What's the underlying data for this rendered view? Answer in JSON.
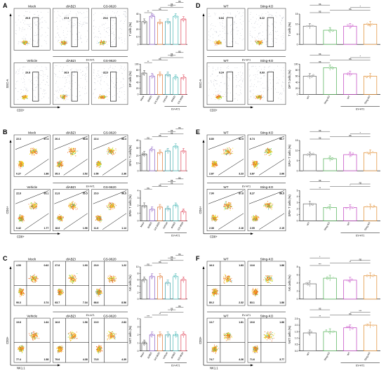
{
  "panels": [
    {
      "letter": "A",
      "group_label": "EV-A71",
      "y_label": "SSC-A",
      "x_label": "CD3+",
      "rows": [
        [
          {
            "title": "Mock",
            "q": [
              "29.5"
            ]
          },
          {
            "title": "diABZI",
            "q": [
              "37.5"
            ]
          },
          {
            "title": "GS-9620",
            "q": [
              "29.6"
            ]
          }
        ],
        [
          {
            "title": "Vehicle",
            "q": [
              "29.8"
            ]
          },
          {
            "title": "diABZI",
            "q": [
              "36.9"
            ]
          },
          {
            "title": "GS-9620",
            "q": [
              "32.8"
            ]
          }
        ]
      ],
      "x_cats": [
        "Mock",
        "diABZI",
        "GS-9620",
        "Vehicle",
        "diABZI",
        "GS-9620"
      ],
      "plot_group_label": "EV-A71",
      "plots": [
        {
          "ylabel": "T cells (%)",
          "ticks": [
            "40",
            "30",
            "20",
            "10",
            "0"
          ],
          "sig": [
            "**",
            "ns",
            "***",
            "ns",
            "ns"
          ]
        },
        {
          "ylabel": "DP cells (%)",
          "ticks": [
            "100",
            "80",
            "60",
            "40",
            "20",
            "0"
          ],
          "sig": [
            "**",
            "ns",
            "***",
            "ns",
            "ns"
          ]
        }
      ]
    },
    {
      "letter": "B",
      "group_label": "EV-A71",
      "y_label": "CD4+",
      "x_label": "CD8+",
      "rows": [
        [
          {
            "title": "Mock",
            "q": [
              "22.3",
              "67.4",
              "0.27",
              "1.88"
            ]
          },
          {
            "title": "diABZI",
            "q": [
              "20.4",
              "58.8",
              "35.3",
              "2.52"
            ]
          },
          {
            "title": "GS-9620",
            "q": [
              "22.4",
              "68.4",
              "3.55",
              "2.36"
            ]
          }
        ],
        [
          {
            "title": "Vehicle",
            "q": [
              "22.8",
              "65.1",
              "0.42",
              "1.77"
            ]
          },
          {
            "title": "diABZI",
            "q": [
              "31.8",
              "55.5",
              "18.6",
              "1.96"
            ]
          },
          {
            "title": "GS-9620",
            "q": [
              "20.9",
              "96.5",
              "11.6",
              "1.14"
            ]
          }
        ]
      ],
      "x_cats": [
        "Mock",
        "diABZI",
        "GS-9620",
        "Vehicle",
        "diABZI",
        "GS-9620"
      ],
      "plot_group_label": "EV-A71",
      "plots": [
        {
          "ylabel": "SP4+ T cells(%)",
          "ticks": [
            "40",
            "30",
            "20",
            "10",
            "0"
          ],
          "sig": [
            "ns",
            "ns",
            "ns",
            "ns",
            "ns"
          ]
        },
        {
          "ylabel": "SP8+ T cells (%)",
          "ticks": [
            "4",
            "3",
            "2",
            "1",
            "0"
          ],
          "sig": [
            "ns",
            "ns",
            "ns",
            "ns",
            "ns"
          ]
        }
      ]
    },
    {
      "letter": "C",
      "group_label": "EV-A71",
      "y_label": "CD3+",
      "x_label": "NK1.1",
      "rows": [
        [
          {
            "title": "Mock",
            "q": [
              "4.55",
              "0.62",
              "90.3",
              "3.74"
            ]
          },
          {
            "title": "diABZI",
            "q": [
              "27.8",
              "1.93",
              "63.7",
              "7.34"
            ]
          },
          {
            "title": "GS-9620",
            "q": [
              "23.9",
              "1.22",
              "66.6",
              "8.56"
            ]
          }
        ],
        [
          {
            "title": "Vehicle",
            "q": [
              "19.8",
              "1.64",
              "77.4",
              "1.58"
            ]
          },
          {
            "title": "diABZI",
            "q": [
              "16.8",
              "1.56",
              "79.6",
              "4.38"
            ]
          },
          {
            "title": "GS-9620",
            "q": [
              "19.9",
              "2.83",
              "73.5",
              "4.39"
            ]
          }
        ]
      ],
      "x_cats": [
        "Mock",
        "diABZI",
        "GS-9620",
        "Vehicle",
        "diABZI",
        "GS-9620"
      ],
      "plot_group_label": "EV-A71",
      "plots": [
        {
          "ylabel": "NK cells (%)",
          "ticks": [
            "10",
            "8",
            "6",
            "4",
            "2",
            "0"
          ],
          "sig": [
            "ns",
            "ns",
            "ns",
            "ns",
            "ns"
          ]
        },
        {
          "ylabel": "NKT cells (%)",
          "ticks": [
            "4",
            "3",
            "2",
            "1",
            "0"
          ],
          "sig": [
            "***",
            "**",
            "*",
            "ns",
            "ns"
          ]
        }
      ]
    },
    {
      "letter": "D",
      "group_label": "EV-A71",
      "y_label": "SSC-A",
      "x_label": "CD3+",
      "rows": [
        [
          {
            "title": "WT",
            "q": [
              "8.84"
            ]
          },
          {
            "title": "Sting-KO",
            "q": [
              "8.22"
            ]
          }
        ],
        [
          {
            "title": "WT",
            "q": [
              "9.24"
            ]
          },
          {
            "title": "Sting-KO",
            "q": [
              "9.93"
            ]
          }
        ]
      ],
      "x_cats": [
        "WT",
        "Sting-KO",
        "WT",
        "Sting-KO"
      ],
      "plot_group_label": "EV-A71",
      "plots": [
        {
          "ylabel": "T cells (%)",
          "ticks": [
            "15",
            "10",
            "5",
            "0"
          ],
          "sig": [
            "ns",
            "ns",
            "*",
            "ns"
          ]
        },
        {
          "ylabel": "DP T cells (%)",
          "ticks": [
            "100",
            "80",
            "60",
            "40",
            "20",
            "0"
          ],
          "sig": [
            "ns",
            "ns",
            "*",
            "ns"
          ]
        }
      ]
    },
    {
      "letter": "E",
      "group_label": "EV-A71",
      "y_label": "CD4+",
      "x_label": "CD8+",
      "rows": [
        [
          {
            "title": "WT",
            "q": [
              "8.80",
              "82.5",
              "2.87",
              "3.23"
            ]
          },
          {
            "title": "Sting-KO",
            "q": [
              "6.74",
              "86.7",
              "3.87",
              "2.66"
            ]
          }
        ],
        [
          {
            "title": "WT",
            "q": [
              "7.90",
              "87.8",
              "2.36",
              "2.16"
            ]
          },
          {
            "title": "Sting-KO",
            "q": [
              "8.27",
              "86.5",
              "2.05",
              "2.15"
            ]
          }
        ]
      ],
      "x_cats": [
        "WT",
        "Sting-KO",
        "WT",
        "Sting-KO"
      ],
      "plot_group_label": "EV-A71",
      "plots": [
        {
          "ylabel": "SP4+ T cells (%)",
          "ticks": [
            "15",
            "10",
            "5",
            "0"
          ],
          "sig": [
            "ns",
            "ns",
            "*",
            "ns"
          ]
        },
        {
          "ylabel": "SP8+ T cells (%)",
          "ticks": [
            "5",
            "4",
            "3",
            "2",
            "1",
            "0"
          ],
          "sig": [
            "**",
            "*",
            "ns",
            "ns"
          ]
        }
      ]
    },
    {
      "letter": "F",
      "group_label": "EV-A71",
      "y_label": "CD3+",
      "x_label": "NK1.1",
      "rows": [
        [
          {
            "title": "WT",
            "q": [
              "16.3",
              "1.83",
              "80.2",
              "2.32"
            ]
          },
          {
            "title": "Sting-KO",
            "q": [
              "13.6",
              "1.86",
              "83.1",
              "1.86"
            ]
          }
        ],
        [
          {
            "title": "WT",
            "q": [
              "13.7",
              "1.81",
              "74.7",
              "4.26"
            ]
          },
          {
            "title": "Sting-KO",
            "q": [
              "19.6",
              "1.86",
              "71.6",
              "3.77"
            ]
          }
        ]
      ],
      "x_cats": [
        "WT",
        "Sting-KO",
        "WT",
        "Sting-KO"
      ],
      "plot_group_label": "EV-A71",
      "plots": [
        {
          "ylabel": "NK cells (%)",
          "ticks": [
            "8",
            "6",
            "4",
            "2",
            "0"
          ],
          "sig": [
            "***",
            "**",
            "ns",
            "*"
          ]
        },
        {
          "ylabel": "NKT cells (%)",
          "ticks": [
            "2.5",
            "2.0",
            "1.5",
            "1.0",
            "0.5",
            "0.0"
          ],
          "sig": [
            "**",
            "ns",
            "***",
            "ns"
          ]
        }
      ]
    }
  ],
  "colors": {
    "groups6": [
      "#555555",
      "#8a5cc2",
      "#e07b39",
      "#3a9ea5",
      "#46b8b5",
      "#e0465a"
    ],
    "groups4": [
      "#666666",
      "#4caf50",
      "#c03ec0",
      "#e08a2c"
    ],
    "dot_density": [
      "#1a2a9b",
      "#2aa6e0",
      "#45d06a",
      "#f2e01e",
      "#f26a1e"
    ]
  },
  "chart_data": [
    {
      "panel": "A",
      "type": "bar",
      "categories": [
        "Mock",
        "diABZI",
        "GS-9620",
        "Vehicle",
        "diABZI",
        "GS-9620"
      ],
      "series": [
        {
          "name": "T cells (%)",
          "values": [
            30,
            37,
            29,
            30,
            37,
            33
          ]
        }
      ],
      "ylim": [
        0,
        40
      ]
    },
    {
      "panel": "A",
      "type": "bar",
      "categories": [
        "Mock",
        "diABZI",
        "GS-9620",
        "Vehicle",
        "diABZI",
        "GS-9620"
      ],
      "series": [
        {
          "name": "DP cells (%)",
          "values": [
            70,
            60,
            65,
            65,
            55,
            55
          ]
        }
      ],
      "ylim": [
        0,
        100
      ]
    },
    {
      "panel": "B",
      "type": "bar",
      "categories": [
        "Mock",
        "diABZI",
        "GS-9620",
        "Vehicle",
        "diABZI",
        "GS-9620"
      ],
      "series": [
        {
          "name": "SP4+ T cells(%)",
          "values": [
            22,
            28,
            24,
            26,
            32,
            26
          ]
        }
      ],
      "ylim": [
        0,
        40
      ]
    },
    {
      "panel": "B",
      "type": "bar",
      "categories": [
        "Mock",
        "diABZI",
        "GS-9620",
        "Vehicle",
        "diABZI",
        "GS-9620"
      ],
      "series": [
        {
          "name": "SP8+ T cells (%)",
          "values": [
            2.0,
            1.5,
            1.8,
            1.6,
            2.0,
            1.2
          ]
        }
      ],
      "ylim": [
        0,
        4
      ]
    },
    {
      "panel": "C",
      "type": "bar",
      "categories": [
        "Mock",
        "diABZI",
        "GS-9620",
        "Vehicle",
        "diABZI",
        "GS-9620"
      ],
      "series": [
        {
          "name": "NK cells (%)",
          "values": [
            6,
            7,
            7,
            5,
            7,
            6
          ]
        }
      ],
      "ylim": [
        0,
        10
      ]
    },
    {
      "panel": "C",
      "type": "bar",
      "categories": [
        "Mock",
        "diABZI",
        "GS-9620",
        "Vehicle",
        "diABZI",
        "GS-9620"
      ],
      "series": [
        {
          "name": "NKT cells (%)",
          "values": [
            1.0,
            2.0,
            2.0,
            2.0,
            2.0,
            2.0
          ]
        }
      ],
      "ylim": [
        0,
        4
      ]
    },
    {
      "panel": "D",
      "type": "bar",
      "categories": [
        "WT",
        "Sting-KO",
        "WT",
        "Sting-KO"
      ],
      "series": [
        {
          "name": "T cells (%)",
          "values": [
            9,
            7,
            9,
            10
          ]
        }
      ],
      "ylim": [
        0,
        15
      ]
    },
    {
      "panel": "D",
      "type": "bar",
      "categories": [
        "WT",
        "Sting-KO",
        "WT",
        "Sting-KO"
      ],
      "series": [
        {
          "name": "DP T cells (%)",
          "values": [
            60,
            88,
            68,
            60
          ]
        }
      ],
      "ylim": [
        0,
        100
      ]
    },
    {
      "panel": "E",
      "type": "bar",
      "categories": [
        "WT",
        "Sting-KO",
        "WT",
        "Sting-KO"
      ],
      "series": [
        {
          "name": "SP4+ T cells (%)",
          "values": [
            8,
            6,
            8,
            9
          ]
        }
      ],
      "ylim": [
        0,
        15
      ]
    },
    {
      "panel": "E",
      "type": "bar",
      "categories": [
        "WT",
        "Sting-KO",
        "WT",
        "Sting-KO"
      ],
      "series": [
        {
          "name": "SP8+ T cells (%)",
          "values": [
            2.8,
            2.2,
            2.2,
            2.3
          ]
        }
      ],
      "ylim": [
        0,
        5
      ]
    },
    {
      "panel": "F",
      "type": "bar",
      "categories": [
        "WT",
        "Sting-KO",
        "WT",
        "Sting-KO"
      ],
      "series": [
        {
          "name": "NK cells (%)",
          "values": [
            3.8,
            5.2,
            4.7,
            5.8
          ]
        }
      ],
      "ylim": [
        0,
        8
      ]
    },
    {
      "panel": "F",
      "type": "bar",
      "categories": [
        "WT",
        "Sting-KO",
        "WT",
        "Sting-KO"
      ],
      "series": [
        {
          "name": "NKT cells (%)",
          "values": [
            1.4,
            1.5,
            1.8,
            2.0
          ]
        }
      ],
      "ylim": [
        0,
        2.5
      ]
    }
  ]
}
